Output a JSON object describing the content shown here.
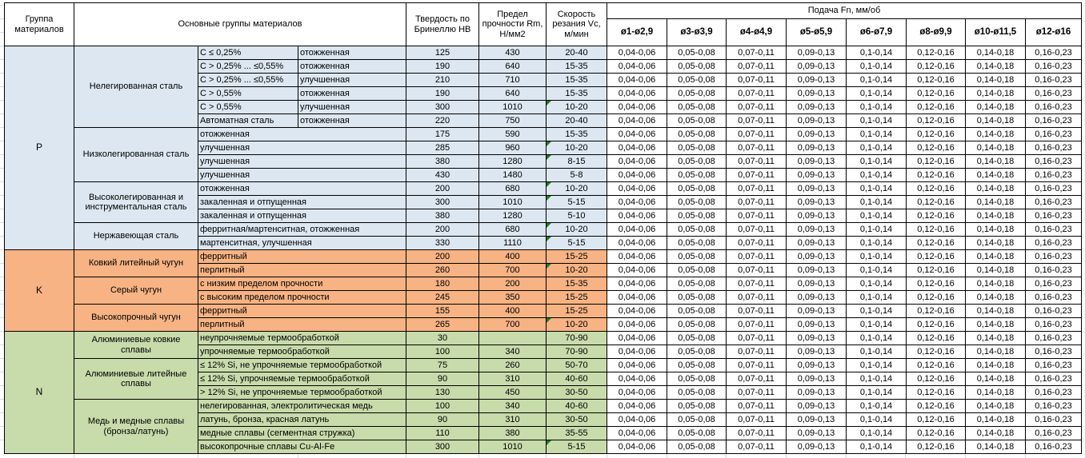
{
  "table": {
    "header": {
      "col_group": "Группа материалов",
      "col_main_groups": "Основные группы материалов",
      "col_hardness": "Твердость по Бринеллю HB",
      "col_strength": "Предел прочности Rm, Н/мм2",
      "col_speed": "Скорость резания Vc, м/мин",
      "feed_title": "Подача Fn, мм/об",
      "feed_cols": [
        "ø1-ø2,9",
        "ø3-ø3,9",
        "ø4-ø4,9",
        "ø5-ø5,9",
        "ø6-ø7,9",
        "ø8-ø9,9",
        "ø10-ø11,5",
        "ø12-ø16"
      ]
    },
    "feed_values": [
      "0,04-0,06",
      "0,05-0,08",
      "0,07-0,11",
      "0,09-0,13",
      "0,1-0,14",
      "0,12-0,16",
      "0,14-0,18",
      "0,16-0,23"
    ],
    "colors": {
      "group_p": "#DCE7F1",
      "group_k": "#F7B383",
      "group_n": "#C8DBAB",
      "error_triangle": "#1E7B1E",
      "grid_border": "#000000"
    },
    "groups": [
      {
        "letter": "P",
        "color": "#DCE7F1",
        "subgroups": [
          {
            "name": "Нелегированная сталь",
            "rows": [
              {
                "c1": "C ≤ 0,25%",
                "c2": "отожженная",
                "hb": "125",
                "rm": "430",
                "vc": "20-40"
              },
              {
                "c1": "C > 0,25% ... ≤0,55%",
                "c2": "отожженная",
                "hb": "190",
                "rm": "640",
                "vc": "15-35"
              },
              {
                "c1": "C > 0,25% ... ≤0,55%",
                "c2": "улучшенная",
                "hb": "210",
                "rm": "710",
                "vc": "15-35"
              },
              {
                "c1": "C > 0,55%",
                "c2": "отожженная",
                "hb": "190",
                "rm": "640",
                "vc": "15-35"
              },
              {
                "c1": "C > 0,55%",
                "c2": "улучшенная",
                "hb": "300",
                "rm": "1010",
                "vc": "10-20",
                "flag": true
              },
              {
                "c1": "Автоматная сталь",
                "c2": "отожженная",
                "hb": "220",
                "rm": "750",
                "vc": "20-40"
              }
            ]
          },
          {
            "name": "Низколегированная сталь",
            "rows": [
              {
                "c1": "отожженная",
                "hb": "175",
                "rm": "590",
                "vc": "15-35"
              },
              {
                "c1": "улучшенная",
                "hb": "285",
                "rm": "960",
                "vc": "10-20",
                "flag": true
              },
              {
                "c1": "улучшенная",
                "hb": "380",
                "rm": "1280",
                "vc": "8-15",
                "flag": true
              },
              {
                "c1": "улучшенная",
                "hb": "430",
                "rm": "1480",
                "vc": "5-8"
              }
            ]
          },
          {
            "name": "Высоколегированная и инструментальная сталь",
            "rows": [
              {
                "c1": "отожженная",
                "hb": "200",
                "rm": "680",
                "vc": "10-20",
                "flag": true
              },
              {
                "c1": "закаленная и отпущенная",
                "hb": "300",
                "rm": "1010",
                "vc": "5-15",
                "flag": true
              },
              {
                "c1": "закаленная и отпущенная",
                "hb": "380",
                "rm": "1280",
                "vc": "5-10"
              }
            ]
          },
          {
            "name": "Нержавеющая сталь",
            "rows": [
              {
                "c1": "ферритная/мартенситная, отожженная",
                "hb": "200",
                "rm": "680",
                "vc": "10-20",
                "flag": true
              },
              {
                "c1": "мартенситная, улучшенная",
                "hb": "330",
                "rm": "1110",
                "vc": "5-15",
                "flag": true
              }
            ]
          }
        ]
      },
      {
        "letter": "K",
        "color": "#F7B383",
        "subgroups": [
          {
            "name": "Ковкий литейный чугун",
            "rows": [
              {
                "c1": "ферритный",
                "hb": "200",
                "rm": "400",
                "vc": "15-25"
              },
              {
                "c1": "перлитный",
                "hb": "260",
                "rm": "700",
                "vc": "10-20",
                "flag": true
              }
            ]
          },
          {
            "name": "Серый чугун",
            "rows": [
              {
                "c1": "с низким пределом прочности",
                "hb": "180",
                "rm": "200",
                "vc": "15-35"
              },
              {
                "c1": "с высоким пределом прочности",
                "hb": "245",
                "rm": "350",
                "vc": "15-25"
              }
            ]
          },
          {
            "name": "Высокопрочный чугун",
            "rows": [
              {
                "c1": "ферритный",
                "hb": "155",
                "rm": "400",
                "vc": "15-25"
              },
              {
                "c1": "перлитный",
                "hb": "265",
                "rm": "700",
                "vc": "10-20",
                "flag": true
              }
            ]
          }
        ]
      },
      {
        "letter": "N",
        "color": "#C8DBAB",
        "subgroups": [
          {
            "name": "Алюминиевые ковкие сплавы",
            "rows": [
              {
                "c1": "неупрочняемые термообработкой",
                "hb": "30",
                "rm": "",
                "vc": "70-90"
              },
              {
                "c1": "упрочняемые термообработкой",
                "hb": "100",
                "rm": "340",
                "vc": "70-90"
              }
            ]
          },
          {
            "name": "Алюминиевые литейные сплавы",
            "rows": [
              {
                "c1": "≤ 12% Si, не упрочняемые термообработкой",
                "hb": "75",
                "rm": "260",
                "vc": "50-70"
              },
              {
                "c1": "≤ 12% Si, упрочняемые термообработкой",
                "hb": "90",
                "rm": "310",
                "vc": "40-60"
              },
              {
                "c1": "> 12% Si, не упрочняемые термообработкой",
                "hb": "130",
                "rm": "450",
                "vc": "30-50"
              }
            ]
          },
          {
            "name": "Медь и медные сплавы (бронза/латунь)",
            "rows": [
              {
                "c1": "нелегированная, электролитическая медь",
                "hb": "100",
                "rm": "340",
                "vc": "40-60"
              },
              {
                "c1": "латунь, бронза, красная латунь",
                "hb": "90",
                "rm": "310",
                "vc": "30-50"
              },
              {
                "c1": "медные сплавы (сегментная стружка)",
                "hb": "110",
                "rm": "380",
                "vc": "35-55"
              },
              {
                "c1": "высокопрочные сплавы Cu-Al-Fe",
                "hb": "300",
                "rm": "1010",
                "vc": "5-15",
                "flag": true
              }
            ]
          }
        ]
      }
    ]
  }
}
